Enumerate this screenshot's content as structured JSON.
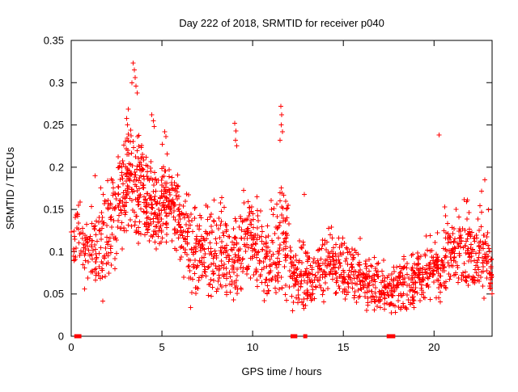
{
  "page": {
    "background": "#ffffff",
    "border_color": "#000000"
  },
  "chart_data": {
    "type": "scatter",
    "title": "Day 222 of 2018, SRMTID for receiver p040",
    "xlabel": "GPS time / hours",
    "ylabel": "SRMTID / TECUs",
    "xlim": [
      0,
      23.2
    ],
    "ylim": [
      0,
      0.35
    ],
    "xticks": [
      0,
      5,
      10,
      15,
      20
    ],
    "xtick_labels": [
      "0",
      "5",
      "10",
      "15",
      "20"
    ],
    "yticks": [
      0,
      0.05,
      0.1,
      0.15,
      0.2,
      0.25,
      0.3,
      0.35
    ],
    "ytick_labels": [
      "0",
      "0.05",
      "0.1",
      "0.15",
      "0.2",
      "0.25",
      "0.3",
      "0.35"
    ],
    "grid": false,
    "legend": "none",
    "marker": "plus",
    "marker_color": "#ff0000",
    "series_name": "SRMTID",
    "seed": 7,
    "cluster_fields": [
      "x0",
      "x1",
      "count",
      "y_center",
      "y_spread",
      "y_min",
      "y_max"
    ],
    "point_clusters": [
      [
        0.0,
        0.5,
        25,
        0.115,
        0.02,
        0.07,
        0.16
      ],
      [
        0.5,
        1.0,
        30,
        0.1,
        0.02,
        0.055,
        0.15
      ],
      [
        1.0,
        1.5,
        35,
        0.1,
        0.025,
        0.05,
        0.19
      ],
      [
        1.5,
        2.0,
        40,
        0.105,
        0.03,
        0.04,
        0.2
      ],
      [
        2.0,
        2.5,
        45,
        0.13,
        0.03,
        0.07,
        0.21
      ],
      [
        2.5,
        3.0,
        50,
        0.165,
        0.035,
        0.09,
        0.27
      ],
      [
        3.0,
        3.5,
        60,
        0.195,
        0.04,
        0.12,
        0.31
      ],
      [
        3.5,
        4.0,
        60,
        0.18,
        0.04,
        0.11,
        0.29
      ],
      [
        4.0,
        4.5,
        60,
        0.16,
        0.03,
        0.11,
        0.25
      ],
      [
        4.5,
        5.0,
        55,
        0.15,
        0.025,
        0.1,
        0.24
      ],
      [
        5.0,
        5.5,
        55,
        0.165,
        0.03,
        0.11,
        0.24
      ],
      [
        5.5,
        6.0,
        50,
        0.15,
        0.025,
        0.1,
        0.21
      ],
      [
        6.0,
        6.5,
        45,
        0.125,
        0.025,
        0.07,
        0.18
      ],
      [
        6.5,
        7.0,
        40,
        0.1,
        0.03,
        0.03,
        0.17
      ],
      [
        7.0,
        7.5,
        40,
        0.1,
        0.025,
        0.05,
        0.16
      ],
      [
        7.5,
        8.0,
        40,
        0.1,
        0.03,
        0.04,
        0.19
      ],
      [
        8.0,
        8.5,
        42,
        0.105,
        0.03,
        0.05,
        0.18
      ],
      [
        8.5,
        9.0,
        40,
        0.09,
        0.025,
        0.04,
        0.16
      ],
      [
        9.0,
        9.5,
        42,
        0.1,
        0.03,
        0.05,
        0.2
      ],
      [
        9.5,
        10.0,
        45,
        0.12,
        0.03,
        0.06,
        0.19
      ],
      [
        10.0,
        10.5,
        45,
        0.11,
        0.03,
        0.05,
        0.18
      ],
      [
        10.5,
        11.0,
        40,
        0.09,
        0.025,
        0.04,
        0.16
      ],
      [
        11.0,
        11.5,
        42,
        0.1,
        0.03,
        0.05,
        0.2
      ],
      [
        11.5,
        12.0,
        45,
        0.115,
        0.04,
        0.04,
        0.23
      ],
      [
        12.0,
        12.5,
        40,
        0.07,
        0.02,
        0.03,
        0.13
      ],
      [
        12.5,
        13.0,
        40,
        0.075,
        0.025,
        0.03,
        0.17
      ],
      [
        13.0,
        13.5,
        38,
        0.07,
        0.02,
        0.04,
        0.12
      ],
      [
        13.5,
        14.0,
        38,
        0.08,
        0.02,
        0.04,
        0.13
      ],
      [
        14.0,
        14.5,
        40,
        0.09,
        0.02,
        0.05,
        0.13
      ],
      [
        14.5,
        15.0,
        40,
        0.08,
        0.02,
        0.05,
        0.12
      ],
      [
        15.0,
        15.5,
        38,
        0.072,
        0.018,
        0.04,
        0.11
      ],
      [
        15.5,
        16.0,
        38,
        0.07,
        0.018,
        0.04,
        0.12
      ],
      [
        16.0,
        16.5,
        38,
        0.062,
        0.016,
        0.03,
        0.1
      ],
      [
        16.5,
        17.0,
        38,
        0.062,
        0.018,
        0.03,
        0.11
      ],
      [
        17.0,
        17.5,
        38,
        0.058,
        0.016,
        0.03,
        0.1
      ],
      [
        17.5,
        18.0,
        40,
        0.055,
        0.016,
        0.02,
        0.09
      ],
      [
        18.0,
        18.5,
        42,
        0.06,
        0.018,
        0.03,
        0.1
      ],
      [
        18.5,
        19.0,
        42,
        0.065,
        0.018,
        0.03,
        0.1
      ],
      [
        19.0,
        19.5,
        42,
        0.07,
        0.018,
        0.04,
        0.11
      ],
      [
        19.5,
        20.0,
        42,
        0.08,
        0.02,
        0.04,
        0.12
      ],
      [
        20.0,
        20.5,
        42,
        0.08,
        0.02,
        0.04,
        0.13
      ],
      [
        20.5,
        21.0,
        42,
        0.095,
        0.025,
        0.05,
        0.17
      ],
      [
        21.0,
        21.5,
        42,
        0.1,
        0.025,
        0.05,
        0.15
      ],
      [
        21.5,
        22.0,
        42,
        0.105,
        0.028,
        0.06,
        0.18
      ],
      [
        22.0,
        22.5,
        42,
        0.1,
        0.025,
        0.06,
        0.16
      ],
      [
        22.5,
        23.0,
        40,
        0.1,
        0.03,
        0.04,
        0.18
      ],
      [
        23.0,
        23.2,
        20,
        0.08,
        0.02,
        0.05,
        0.12
      ]
    ],
    "outlier_points": [
      [
        3.35,
        0.3
      ],
      [
        3.42,
        0.323
      ],
      [
        3.47,
        0.315
      ],
      [
        3.52,
        0.306
      ],
      [
        3.58,
        0.296
      ],
      [
        3.63,
        0.288
      ],
      [
        4.45,
        0.262
      ],
      [
        4.52,
        0.255
      ],
      [
        4.58,
        0.248
      ],
      [
        5.15,
        0.242
      ],
      [
        5.22,
        0.236
      ],
      [
        9.02,
        0.252
      ],
      [
        9.08,
        0.243
      ],
      [
        9.05,
        0.232
      ],
      [
        9.12,
        0.225
      ],
      [
        11.55,
        0.272
      ],
      [
        11.6,
        0.262
      ],
      [
        11.58,
        0.25
      ],
      [
        11.64,
        0.242
      ],
      [
        11.52,
        0.232
      ],
      [
        12.85,
        0.168
      ],
      [
        20.28,
        0.238
      ],
      [
        22.8,
        0.185
      ],
      [
        1.32,
        0.19
      ]
    ],
    "baseline_squares_x": [
      0.28,
      0.45,
      12.2,
      12.35,
      12.9,
      17.5,
      17.6,
      17.65,
      17.75
    ]
  }
}
